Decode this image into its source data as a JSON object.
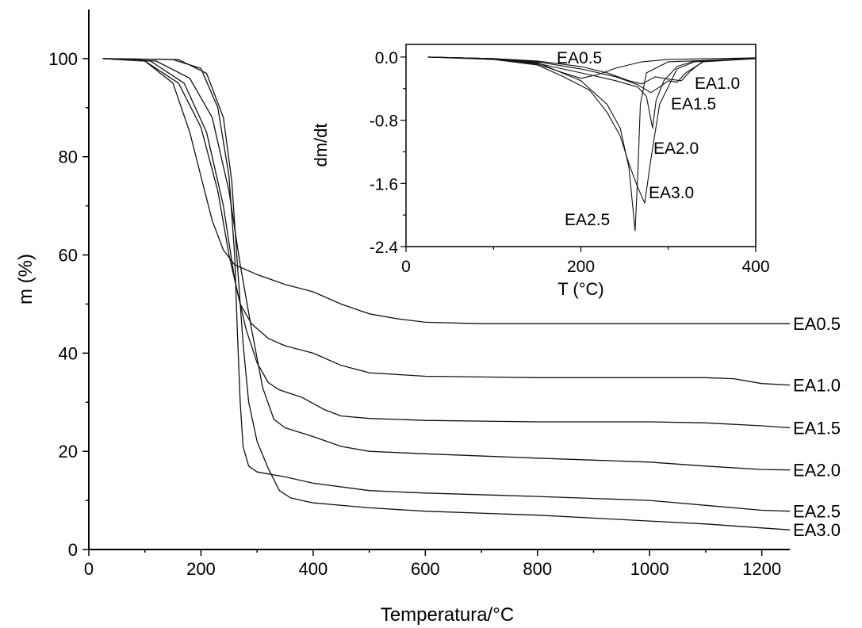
{
  "chart_data": [
    {
      "type": "line",
      "title": "",
      "xlabel": "Temperatura/°C",
      "ylabel": "m (%)",
      "xlim": [
        0,
        1250
      ],
      "ylim": [
        0,
        110
      ],
      "xticks": [
        "0",
        "200",
        "400",
        "600",
        "800",
        "1000",
        "1200"
      ],
      "yticks": [
        "0",
        "20",
        "40",
        "60",
        "80",
        "100"
      ],
      "series": [
        {
          "name": "EA0.5",
          "points": [
            [
              25,
              100
            ],
            [
              100,
              99.5
            ],
            [
              150,
              95
            ],
            [
              180,
              85
            ],
            [
              200,
              76
            ],
            [
              220,
              67
            ],
            [
              240,
              61
            ],
            [
              260,
              58
            ],
            [
              300,
              56
            ],
            [
              350,
              54
            ],
            [
              400,
              52.5
            ],
            [
              450,
              50
            ],
            [
              500,
              48
            ],
            [
              550,
              47
            ],
            [
              600,
              46.3
            ],
            [
              700,
              46
            ],
            [
              800,
              46
            ],
            [
              900,
              46
            ],
            [
              1000,
              46
            ],
            [
              1100,
              46
            ],
            [
              1250,
              46
            ]
          ]
        },
        {
          "name": "EA1.0",
          "points": [
            [
              25,
              100
            ],
            [
              100,
              99.5
            ],
            [
              160,
              95
            ],
            [
              200,
              86
            ],
            [
              230,
              73
            ],
            [
              250,
              60
            ],
            [
              270,
              50
            ],
            [
              290,
              46
            ],
            [
              320,
              43
            ],
            [
              350,
              41.5
            ],
            [
              400,
              40
            ],
            [
              450,
              37.5
            ],
            [
              500,
              36
            ],
            [
              600,
              35.3
            ],
            [
              800,
              35
            ],
            [
              1000,
              35
            ],
            [
              1100,
              35
            ],
            [
              1150,
              34.8
            ],
            [
              1200,
              33.8
            ],
            [
              1250,
              33.5
            ]
          ]
        },
        {
          "name": "EA1.5",
          "points": [
            [
              25,
              100
            ],
            [
              110,
              99.5
            ],
            [
              170,
              95
            ],
            [
              210,
              85
            ],
            [
              240,
              70
            ],
            [
              260,
              55
            ],
            [
              280,
              45
            ],
            [
              300,
              38
            ],
            [
              320,
              34
            ],
            [
              340,
              32.5
            ],
            [
              380,
              31
            ],
            [
              420,
              28.5
            ],
            [
              450,
              27.2
            ],
            [
              500,
              26.7
            ],
            [
              600,
              26.3
            ],
            [
              800,
              26
            ],
            [
              1000,
              26
            ],
            [
              1100,
              25.8
            ],
            [
              1200,
              25.2
            ],
            [
              1250,
              24.8
            ]
          ]
        },
        {
          "name": "EA2.0",
          "points": [
            [
              25,
              100
            ],
            [
              120,
              99.5
            ],
            [
              180,
              96
            ],
            [
              220,
              88
            ],
            [
              250,
              73
            ],
            [
              270,
              58
            ],
            [
              290,
              45
            ],
            [
              310,
              33
            ],
            [
              330,
              26.5
            ],
            [
              350,
              24.8
            ],
            [
              400,
              23
            ],
            [
              450,
              21
            ],
            [
              500,
              20
            ],
            [
              600,
              19.5
            ],
            [
              800,
              18.6
            ],
            [
              1000,
              17.8
            ],
            [
              1100,
              17
            ],
            [
              1200,
              16.3
            ],
            [
              1250,
              16.2
            ]
          ]
        },
        {
          "name": "EA2.5",
          "points": [
            [
              25,
              100
            ],
            [
              150,
              99.8
            ],
            [
              200,
              98
            ],
            [
              230,
              90
            ],
            [
              250,
              76
            ],
            [
              260,
              60
            ],
            [
              265,
              44
            ],
            [
              270,
              30
            ],
            [
              275,
              21
            ],
            [
              285,
              17
            ],
            [
              300,
              15.8
            ],
            [
              350,
              14.8
            ],
            [
              400,
              13.5
            ],
            [
              500,
              12
            ],
            [
              600,
              11.5
            ],
            [
              800,
              10.8
            ],
            [
              1000,
              10
            ],
            [
              1100,
              9
            ],
            [
              1200,
              8
            ],
            [
              1250,
              7.8
            ]
          ]
        },
        {
          "name": "EA3.0",
          "points": [
            [
              25,
              100
            ],
            [
              160,
              99.8
            ],
            [
              210,
              97
            ],
            [
              240,
              88
            ],
            [
              255,
              75
            ],
            [
              265,
              58
            ],
            [
              275,
              42
            ],
            [
              285,
              30
            ],
            [
              300,
              22
            ],
            [
              320,
              16.5
            ],
            [
              340,
              12
            ],
            [
              360,
              10.5
            ],
            [
              400,
              9.5
            ],
            [
              500,
              8.5
            ],
            [
              600,
              7.8
            ],
            [
              800,
              7
            ],
            [
              1000,
              5.8
            ],
            [
              1100,
              5.2
            ],
            [
              1200,
              4.4
            ],
            [
              1250,
              4
            ]
          ]
        }
      ]
    },
    {
      "type": "line",
      "title": "",
      "xlabel": "T (°C)",
      "ylabel": "dm/dt",
      "xlim": [
        0,
        400
      ],
      "ylim": [
        -2.4,
        0.16
      ],
      "xticks": [
        "0",
        "200",
        "400"
      ],
      "yticks": [
        "0.0",
        "-0.8",
        "-1.6",
        "-2.4"
      ],
      "series": [
        {
          "name": "EA0.5",
          "points": [
            [
              25,
              0
            ],
            [
              50,
              -0.01
            ],
            [
              100,
              -0.03
            ],
            [
              150,
              -0.09
            ],
            [
              180,
              -0.2
            ],
            [
              200,
              -0.27
            ],
            [
              220,
              -0.22
            ],
            [
              240,
              -0.14
            ],
            [
              270,
              -0.06
            ],
            [
              300,
              -0.03
            ],
            [
              350,
              -0.02
            ],
            [
              400,
              -0.01
            ]
          ]
        },
        {
          "name": "EA1.0",
          "points": [
            [
              25,
              0
            ],
            [
              100,
              -0.02
            ],
            [
              150,
              -0.05
            ],
            [
              200,
              -0.12
            ],
            [
              230,
              -0.2
            ],
            [
              255,
              -0.3
            ],
            [
              270,
              -0.34
            ],
            [
              285,
              -0.25
            ],
            [
              300,
              -0.28
            ],
            [
              315,
              -0.3
            ],
            [
              325,
              -0.18
            ],
            [
              340,
              -0.05
            ],
            [
              400,
              -0.01
            ]
          ]
        },
        {
          "name": "EA1.5",
          "points": [
            [
              25,
              0
            ],
            [
              100,
              -0.02
            ],
            [
              150,
              -0.06
            ],
            [
              200,
              -0.15
            ],
            [
              240,
              -0.25
            ],
            [
              265,
              -0.35
            ],
            [
              280,
              -0.45
            ],
            [
              290,
              -0.38
            ],
            [
              300,
              -0.3
            ],
            [
              310,
              -0.32
            ],
            [
              320,
              -0.2
            ],
            [
              340,
              -0.06
            ],
            [
              400,
              -0.02
            ]
          ]
        },
        {
          "name": "EA2.0",
          "points": [
            [
              25,
              0
            ],
            [
              100,
              -0.02
            ],
            [
              150,
              -0.08
            ],
            [
              200,
              -0.2
            ],
            [
              240,
              -0.3
            ],
            [
              265,
              -0.38
            ],
            [
              275,
              -0.5
            ],
            [
              282,
              -0.9
            ],
            [
              286,
              -0.55
            ],
            [
              295,
              -0.3
            ],
            [
              310,
              -0.12
            ],
            [
              330,
              -0.05
            ],
            [
              400,
              -0.02
            ]
          ]
        },
        {
          "name": "EA3.0",
          "points": [
            [
              25,
              0
            ],
            [
              100,
              -0.03
            ],
            [
              150,
              -0.1
            ],
            [
              180,
              -0.25
            ],
            [
              210,
              -0.42
            ],
            [
              230,
              -0.7
            ],
            [
              245,
              -1.0
            ],
            [
              255,
              -1.35
            ],
            [
              265,
              -1.65
            ],
            [
              273,
              -1.85
            ],
            [
              280,
              -1.3
            ],
            [
              290,
              -0.6
            ],
            [
              310,
              -0.15
            ],
            [
              330,
              -0.06
            ],
            [
              400,
              -0.02
            ]
          ]
        },
        {
          "name": "EA2.5",
          "points": [
            [
              25,
              0
            ],
            [
              100,
              -0.02
            ],
            [
              150,
              -0.07
            ],
            [
              200,
              -0.3
            ],
            [
              230,
              -0.6
            ],
            [
              245,
              -0.9
            ],
            [
              255,
              -1.4
            ],
            [
              262,
              -2.2
            ],
            [
              265,
              -1.5
            ],
            [
              268,
              -0.6
            ],
            [
              275,
              -0.2
            ],
            [
              300,
              -0.06
            ],
            [
              400,
              -0.02
            ]
          ]
        }
      ]
    }
  ]
}
